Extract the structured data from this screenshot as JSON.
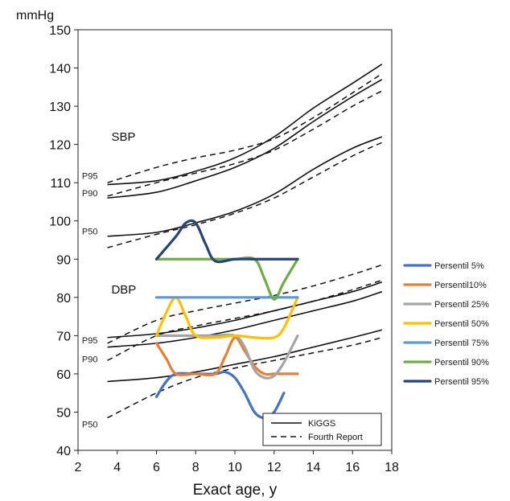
{
  "chart_data": {
    "type": "line",
    "ylabel": "mmHg",
    "xlabel": "Exact age, y",
    "xlim": [
      2,
      18
    ],
    "ylim": [
      40,
      150
    ],
    "xticks": [
      2,
      4,
      6,
      8,
      10,
      12,
      14,
      16,
      18
    ],
    "yticks": [
      40,
      50,
      60,
      70,
      80,
      90,
      100,
      110,
      120,
      130,
      140,
      150
    ],
    "grid": false,
    "annotations": [
      {
        "text": "SBP",
        "x": 3.7,
        "y": 121,
        "size": "big"
      },
      {
        "text": "DBP",
        "x": 3.7,
        "y": 81,
        "size": "big"
      },
      {
        "text": "P95",
        "x": 2.2,
        "y": 111,
        "size": "small"
      },
      {
        "text": "P90",
        "x": 2.2,
        "y": 106.5,
        "size": "small"
      },
      {
        "text": "P50",
        "x": 2.2,
        "y": 96.5,
        "size": "small"
      },
      {
        "text": "P95",
        "x": 2.2,
        "y": 68,
        "size": "small"
      },
      {
        "text": "P90",
        "x": 2.2,
        "y": 63,
        "size": "small"
      },
      {
        "text": "P50",
        "x": 2.2,
        "y": 46,
        "size": "small"
      }
    ],
    "reference_legend": {
      "position": "bottom-right",
      "entries": [
        {
          "label": "KiGGS",
          "style": "solid"
        },
        {
          "label": "Fourth Report",
          "style": "dashed"
        }
      ]
    },
    "reference_curves": [
      {
        "group": "KiGGS",
        "style": "solid",
        "x": [
          3.5,
          6,
          8,
          10,
          12,
          14,
          16,
          17.5
        ],
        "y": [
          109.5,
          110.5,
          113,
          116.5,
          122,
          129.5,
          136,
          141
        ]
      },
      {
        "group": "KiGGS",
        "style": "solid",
        "x": [
          3.5,
          6,
          8,
          10,
          12,
          14,
          16,
          17.5
        ],
        "y": [
          106,
          107.5,
          110.5,
          114,
          119,
          126,
          132.5,
          137
        ]
      },
      {
        "group": "KiGGS",
        "style": "solid",
        "x": [
          3.5,
          6,
          8,
          10,
          12,
          14,
          16,
          17.5
        ],
        "y": [
          96,
          97,
          99.5,
          102.5,
          107,
          113.5,
          119,
          122
        ]
      },
      {
        "group": "KiGGS",
        "style": "solid",
        "x": [
          3.5,
          6,
          8,
          10,
          12,
          14,
          16,
          17.5
        ],
        "y": [
          69.5,
          70.5,
          72,
          74,
          76.5,
          79,
          81.5,
          84
        ]
      },
      {
        "group": "KiGGS",
        "style": "solid",
        "x": [
          3.5,
          6,
          8,
          10,
          12,
          14,
          16,
          17.5
        ],
        "y": [
          67,
          68,
          69.5,
          71.5,
          74,
          76.5,
          79,
          81.5
        ]
      },
      {
        "group": "KiGGS",
        "style": "solid",
        "x": [
          3.5,
          6,
          8,
          10,
          12,
          14,
          16,
          17.5
        ],
        "y": [
          58,
          59,
          60.5,
          62.5,
          64.5,
          67,
          69.5,
          71.5
        ]
      },
      {
        "group": "Fourth Report",
        "style": "dashed",
        "x": [
          3.5,
          6,
          8,
          10,
          12,
          14,
          16,
          17.5
        ],
        "y": [
          110,
          114,
          116.5,
          118.5,
          121.5,
          127,
          133.5,
          138.5
        ]
      },
      {
        "group": "Fourth Report",
        "style": "dashed",
        "x": [
          3.5,
          6,
          8,
          10,
          12,
          14,
          16,
          17.5
        ],
        "y": [
          106.5,
          110,
          112.5,
          115,
          118.5,
          124,
          130,
          134
        ]
      },
      {
        "group": "Fourth Report",
        "style": "dashed",
        "x": [
          3.5,
          6,
          8,
          10,
          12,
          14,
          16,
          17.5
        ],
        "y": [
          93,
          96.5,
          99,
          102,
          106,
          111.5,
          117,
          120.5
        ]
      },
      {
        "group": "Fourth Report",
        "style": "dashed",
        "x": [
          3.5,
          6,
          8,
          10,
          12,
          14,
          16,
          17.5
        ],
        "y": [
          68,
          74,
          76.5,
          78.5,
          80.5,
          83,
          86,
          88.5
        ]
      },
      {
        "group": "Fourth Report",
        "style": "dashed",
        "x": [
          3.5,
          6,
          8,
          10,
          12,
          14,
          16,
          17.5
        ],
        "y": [
          63.5,
          70,
          72.5,
          74.5,
          76.5,
          79,
          82,
          84.5
        ]
      },
      {
        "group": "Fourth Report",
        "style": "dashed",
        "x": [
          3.5,
          6,
          8,
          10,
          12,
          14,
          16,
          17.5
        ],
        "y": [
          48.5,
          55,
          59,
          61.5,
          63.5,
          65.5,
          67.5,
          69.5
        ]
      }
    ],
    "series": [
      {
        "name": "Persentil 5%",
        "color": "#4472C4",
        "x": [
          6,
          6.5,
          7,
          8,
          9,
          9.5,
          10,
          10.5,
          11,
          11.5,
          12,
          12.5
        ],
        "y": [
          54,
          58,
          60,
          60,
          60,
          60.5,
          59,
          55,
          50,
          48.5,
          50,
          55
        ]
      },
      {
        "name": "Persentil10%",
        "color": "#ED7D31",
        "x": [
          6,
          6.5,
          7,
          8,
          9,
          9.5,
          10,
          10.5,
          11,
          11.5,
          12,
          12.5,
          13.2
        ],
        "y": [
          68,
          64,
          60,
          60,
          60,
          64.5,
          69.5,
          66,
          62,
          60,
          60,
          60,
          60
        ]
      },
      {
        "name": "Persentil 25%",
        "color": "#A5A5A5",
        "x": [
          6,
          7,
          8,
          9,
          10,
          10.5,
          11,
          11.5,
          12,
          12.5,
          13.2
        ],
        "y": [
          70,
          70,
          70,
          70,
          70,
          67,
          61,
          59,
          59.5,
          63,
          70
        ]
      },
      {
        "name": "Persentil 50%",
        "color": "#FFC000",
        "x": [
          6,
          6.5,
          7,
          7.5,
          8,
          9,
          10,
          11,
          12,
          12.5,
          13.2
        ],
        "y": [
          70,
          76,
          80,
          75,
          70,
          69.5,
          70,
          69.5,
          69.5,
          72,
          80
        ]
      },
      {
        "name": "Persentil 75%",
        "color": "#5B9BD5",
        "x": [
          6,
          13.2
        ],
        "y": [
          80,
          80
        ]
      },
      {
        "name": "Persentil 90%",
        "color": "#70AD47",
        "x": [
          6,
          9,
          10,
          11,
          11.5,
          12,
          12.5,
          13.2
        ],
        "y": [
          90,
          90,
          90,
          90,
          85,
          79.5,
          84,
          90
        ]
      },
      {
        "name": "Persentil 95%",
        "color": "#264478",
        "x": [
          6,
          7,
          7.5,
          8,
          8.5,
          9,
          10,
          11,
          12,
          13.2
        ],
        "y": [
          90,
          96,
          99.5,
          99.5,
          94,
          89.5,
          90,
          90,
          90,
          90
        ]
      }
    ],
    "series_legend": {
      "position": "right"
    }
  }
}
